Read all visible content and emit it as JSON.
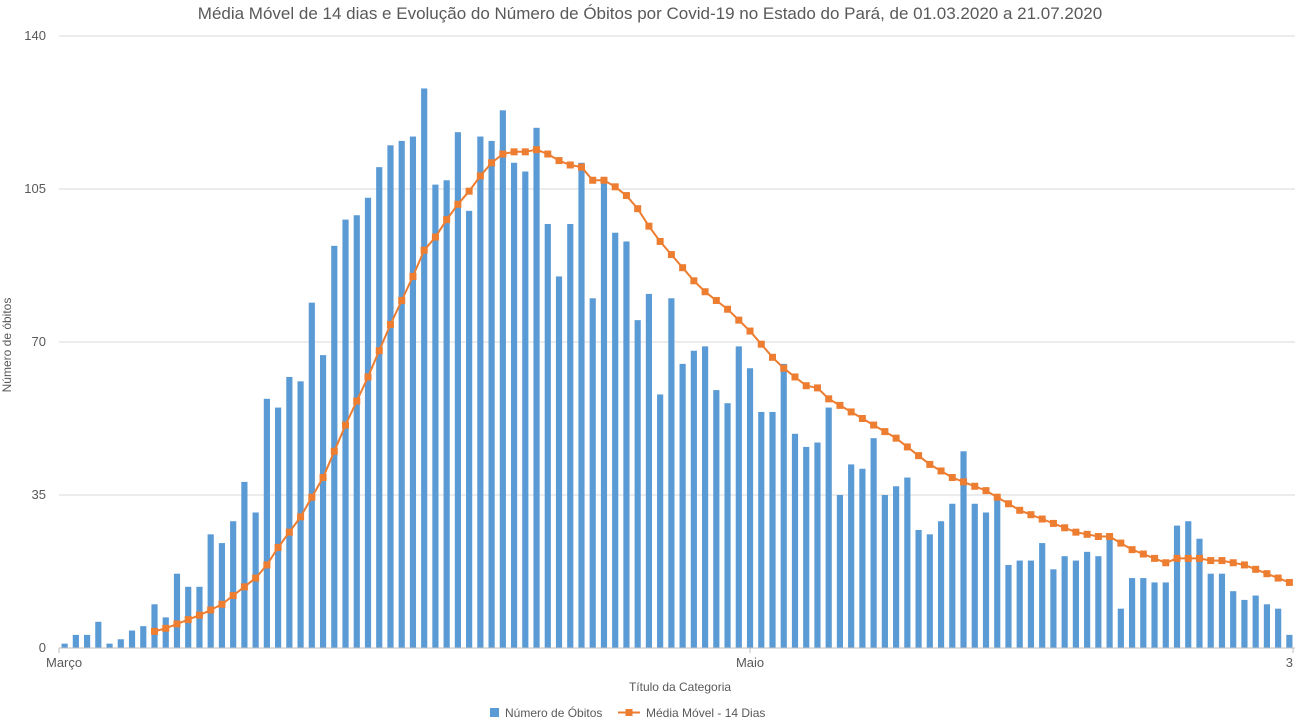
{
  "chart_data": {
    "type": "bar",
    "title": "Média Móvel de 14 dias e Evolução do Número de Óbitos por Covid-19 no Estado do Pará, de 01.03.2020 a 21.07.2020",
    "xlabel": "Título da Categoria",
    "ylabel": "Número de óbitos",
    "ylim": [
      0,
      140
    ],
    "yticks": [
      0,
      35,
      70,
      105,
      140
    ],
    "x_tick_labels": [
      "Março",
      "Maio",
      "3"
    ],
    "grid": true,
    "legend_position": "bottom",
    "series": [
      {
        "name": "Número de Óbitos",
        "type": "bar",
        "color": "#5b9bd5",
        "values": [
          1,
          3,
          3,
          6,
          1,
          2,
          4,
          5,
          10,
          7,
          17,
          14,
          14,
          26,
          24,
          29,
          38,
          31,
          57,
          55,
          62,
          61,
          79,
          67,
          92,
          98,
          99,
          103,
          110,
          115,
          116,
          117,
          128,
          106,
          107,
          118,
          100,
          117,
          116,
          123,
          111,
          109,
          119,
          97,
          85,
          97,
          111,
          80,
          107,
          95,
          93,
          75,
          81,
          58,
          80,
          65,
          68,
          69,
          59,
          56,
          69,
          64,
          54,
          54,
          65,
          49,
          46,
          47,
          55,
          35,
          42,
          41,
          48,
          35,
          37,
          39,
          27,
          26,
          29,
          33,
          45,
          33,
          31,
          35,
          19,
          20,
          20,
          24,
          18,
          21,
          20,
          22,
          21,
          25,
          9,
          16,
          16,
          15,
          15,
          28,
          29,
          25,
          17,
          17,
          13,
          11,
          12,
          10,
          9,
          3
        ]
      },
      {
        "name": "Média Móvel - 14 Dias",
        "type": "line",
        "color": "#ed7d31",
        "values": [
          null,
          null,
          null,
          null,
          null,
          null,
          null,
          null,
          3.8,
          4.5,
          5.5,
          6.5,
          7.5,
          8.7,
          10,
          12,
          14,
          16,
          19,
          23,
          26.5,
          30,
          34.5,
          39,
          45,
          51,
          56.5,
          62,
          68,
          74,
          79.5,
          85,
          91,
          94,
          98,
          101.5,
          104.5,
          108,
          111,
          113,
          113.5,
          113.5,
          114,
          113,
          111.5,
          110.5,
          110,
          107,
          107,
          105.5,
          103.5,
          100.5,
          96.5,
          93,
          90,
          87,
          84,
          81.5,
          79.5,
          77.5,
          75,
          72.5,
          69.5,
          66.5,
          64,
          62,
          60,
          59.5,
          57,
          55.5,
          54,
          52.5,
          51,
          49.5,
          48,
          46,
          44,
          42,
          40.5,
          39,
          38,
          37,
          36,
          34.5,
          33,
          31.5,
          30.5,
          29.5,
          28.5,
          27.5,
          26.5,
          26,
          25.5,
          25.5,
          24,
          22.5,
          21.5,
          20.5,
          19.5,
          20.5,
          20.5,
          20.5,
          20,
          20,
          19.5,
          19,
          18,
          17,
          16,
          15
        ]
      }
    ]
  }
}
